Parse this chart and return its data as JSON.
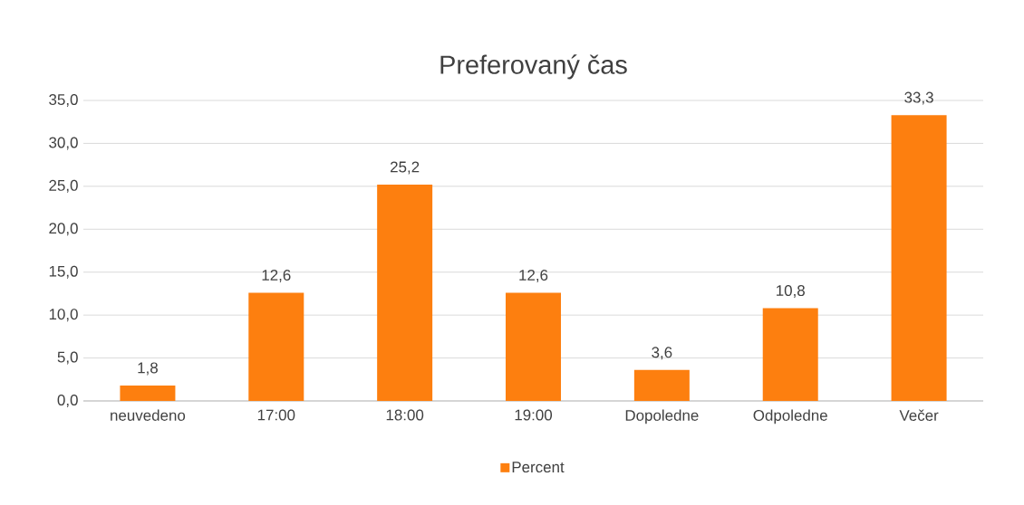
{
  "chart_data": {
    "type": "bar",
    "title": "Preferovaný čas",
    "categories": [
      "neuvedeno",
      "17:00",
      "18:00",
      "19:00",
      "Dopoledne",
      "Odpoledne",
      "Večer"
    ],
    "series": [
      {
        "name": "Percent",
        "color": "#fd7f0f",
        "values": [
          1.8,
          12.6,
          25.2,
          12.6,
          3.6,
          10.8,
          33.3
        ],
        "value_labels": [
          "1,8",
          "12,6",
          "25,2",
          "12,6",
          "3,6",
          "10,8",
          "33,3"
        ]
      }
    ],
    "ylim": [
      0,
      35
    ],
    "yticks": [
      {
        "value": 0,
        "label": "0,0"
      },
      {
        "value": 5,
        "label": "5,0"
      },
      {
        "value": 10,
        "label": "10,0"
      },
      {
        "value": 15,
        "label": "15,0"
      },
      {
        "value": 20,
        "label": "20,0"
      },
      {
        "value": 25,
        "label": "25,0"
      },
      {
        "value": 30,
        "label": "30,0"
      },
      {
        "value": 35,
        "label": "35,0"
      }
    ],
    "grid": "y",
    "legend": "bottom"
  }
}
